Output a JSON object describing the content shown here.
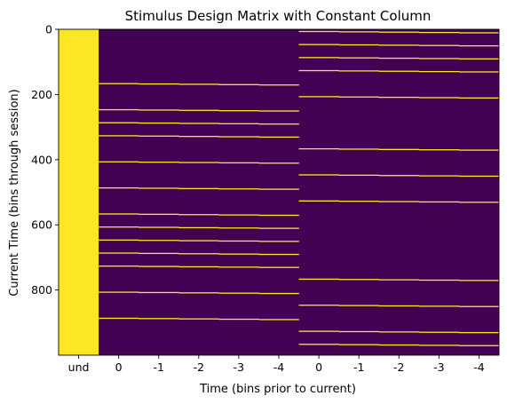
{
  "chart_data": {
    "type": "heatmap",
    "title": "Stimulus Design Matrix with Constant Column",
    "xlabel": "Time (bins prior to current)",
    "ylabel": "Current Time (bins through session)",
    "x_tick_labels": [
      "und",
      "0",
      "-1",
      "-2",
      "-3",
      "-4",
      "0",
      "-1",
      "-2",
      "-3",
      "-4"
    ],
    "y_ticks": [
      0,
      200,
      400,
      600,
      800
    ],
    "y_range": [
      0,
      1000
    ],
    "colormap": {
      "low": "#440154",
      "high": "#fde725"
    },
    "constant_column_value": 1,
    "stimulus_groups": [
      {
        "onsets": [
          165,
          245,
          285,
          325,
          405,
          485,
          565,
          605,
          645,
          685,
          725,
          805,
          885
        ]
      },
      {
        "onsets": [
          5,
          45,
          85,
          125,
          205,
          365,
          445,
          525,
          765,
          845,
          925,
          965
        ]
      }
    ]
  }
}
